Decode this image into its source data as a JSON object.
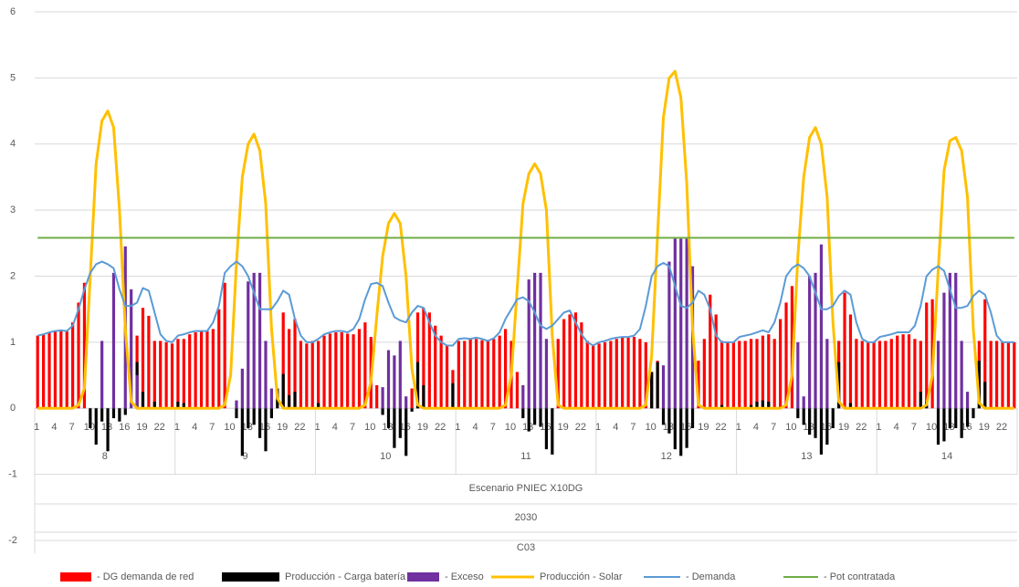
{
  "chart_data": {
    "type": "combo",
    "categories": [
      1,
      null,
      null,
      4,
      null,
      null,
      7,
      null,
      null,
      10,
      null,
      null,
      13,
      null,
      null,
      16,
      null,
      null,
      19,
      null,
      null,
      22,
      null,
      null,
      1,
      null,
      null,
      4,
      null,
      null,
      7,
      null,
      null,
      10,
      null,
      null,
      13,
      null,
      null,
      16,
      null,
      null,
      19,
      null,
      null,
      22,
      null,
      null,
      1,
      null,
      null,
      4,
      null,
      null,
      7,
      null,
      null,
      10,
      null,
      null,
      13,
      null,
      null,
      16,
      null,
      null,
      19,
      null,
      null,
      22,
      null,
      null,
      1,
      null,
      null,
      4,
      null,
      null,
      7,
      null,
      null,
      10,
      null,
      null,
      13,
      null,
      null,
      16,
      null,
      null,
      19,
      null,
      null,
      22,
      null,
      null,
      1,
      null,
      null,
      4,
      null,
      null,
      7,
      null,
      null,
      10,
      null,
      null,
      13,
      null,
      null,
      16,
      null,
      null,
      19,
      null,
      null,
      22,
      null,
      null,
      1,
      null,
      null,
      4,
      null,
      null,
      7,
      null,
      null,
      10,
      null,
      null,
      13,
      null,
      null,
      16,
      null,
      null,
      19,
      null,
      null,
      22,
      null,
      null,
      1,
      null,
      null,
      4,
      null,
      null,
      7,
      null,
      null,
      10,
      null,
      null,
      13,
      null,
      null,
      16,
      null,
      null,
      19,
      null,
      null,
      22,
      null,
      null
    ],
    "x_group_labels": [
      "8",
      "9",
      "10",
      "11",
      "12",
      "13",
      "14"
    ],
    "x_outer_labels": [
      "Escenario PNIEC X10DG",
      "2030",
      "C03"
    ],
    "ylim": [
      -2.2,
      6
    ],
    "yticks": [
      -2,
      -1,
      0,
      1,
      2,
      3,
      4,
      5,
      6
    ],
    "grid": true,
    "series": [
      {
        "name": "- DG demanda de red",
        "type": "bar",
        "color": "#ff0000",
        "values": [
          1.1,
          1.12,
          1.15,
          1.17,
          1.18,
          1.17,
          1.3,
          1.6,
          1.9,
          0,
          0,
          0,
          0,
          0,
          0,
          0,
          0,
          1.1,
          1.52,
          1.4,
          1.02,
          1.02,
          1.0,
          0.98,
          1.05,
          1.05,
          1.12,
          1.15,
          1.17,
          1.17,
          1.2,
          1.5,
          1.9,
          0,
          0,
          0,
          0,
          0,
          0,
          0,
          0,
          0,
          1.45,
          1.2,
          1.35,
          1.02,
          0.98,
          1.02,
          1.02,
          1.1,
          1.13,
          1.15,
          1.15,
          1.13,
          1.12,
          1.2,
          1.3,
          1.08,
          0.35,
          0,
          0,
          0,
          0,
          0,
          0.3,
          1.45,
          1.52,
          1.45,
          1.25,
          1.1,
          0.95,
          0.58,
          1.02,
          1.02,
          1.05,
          1.05,
          1.03,
          1.02,
          1.05,
          1.1,
          1.2,
          1.02,
          0.55,
          0,
          0,
          0,
          0,
          0,
          0,
          1.05,
          1.35,
          1.42,
          1.45,
          1.3,
          1.02,
          0.95,
          0.98,
          1.0,
          1.02,
          1.05,
          1.07,
          1.07,
          1.08,
          1.05,
          1.0,
          0.55,
          0.72,
          0,
          0,
          0,
          0,
          0,
          0,
          0.72,
          1.05,
          1.72,
          1.42,
          1.02,
          1.0,
          1.0,
          1.02,
          1.02,
          1.05,
          1.05,
          1.1,
          1.12,
          1.05,
          1.35,
          1.6,
          1.85,
          0,
          0,
          0,
          0,
          0,
          0,
          0,
          1.02,
          1.75,
          1.42,
          1.05,
          1.02,
          1.0,
          1.0,
          1.02,
          1.02,
          1.05,
          1.1,
          1.12,
          1.12,
          1.05,
          1.02,
          1.6,
          1.65,
          0,
          0,
          0,
          0,
          0,
          0,
          0,
          1.02,
          1.65,
          1.02,
          1.02,
          1.0,
          1.0,
          1.0
        ]
      },
      {
        "name": "Producción - Carga batería",
        "type": "bar",
        "color": "#000000",
        "values": [
          0,
          0,
          0,
          0,
          0,
          0,
          0,
          0,
          0,
          -0.3,
          -0.55,
          -0.2,
          -0.65,
          -0.15,
          -0.2,
          -0.1,
          0,
          0.7,
          0.25,
          0,
          0.1,
          0,
          0,
          0,
          0.1,
          0.08,
          0,
          0,
          0,
          0,
          0,
          0,
          0,
          0,
          -0.15,
          -0.72,
          -0.3,
          -0.25,
          -0.45,
          -0.65,
          -0.15,
          0.3,
          0.52,
          0.2,
          0.25,
          0,
          0,
          0,
          0.08,
          0,
          0,
          0,
          0,
          0,
          0,
          0,
          0,
          0,
          0,
          -0.1,
          -0.3,
          -0.6,
          -0.45,
          -0.72,
          -0.05,
          0.7,
          0.35,
          0,
          0,
          0,
          0,
          0.38,
          0,
          0,
          0,
          0,
          0,
          0,
          0,
          0,
          0,
          0,
          0,
          -0.15,
          -0.35,
          -0.25,
          -0.28,
          -0.62,
          -0.7,
          0,
          0,
          0,
          0,
          0,
          0,
          0,
          0,
          0,
          0,
          0,
          0,
          0,
          0,
          0,
          0,
          0.55,
          0.7,
          -0.25,
          -0.38,
          -0.62,
          -0.72,
          -0.6,
          -0.3,
          0,
          0,
          0,
          0,
          0.05,
          0,
          0,
          0,
          0,
          0.05,
          0.1,
          0.12,
          0.1,
          0,
          0,
          0,
          0,
          -0.15,
          -0.25,
          -0.4,
          -0.45,
          -0.7,
          -0.55,
          -0.3,
          0.7,
          0,
          0.08,
          0,
          0,
          0,
          0,
          0,
          0,
          0,
          0,
          0,
          0,
          0,
          0.25,
          0.1,
          0,
          -0.55,
          -0.5,
          -0.3,
          -0.3,
          -0.45,
          -0.28,
          -0.15,
          0.72,
          0.4,
          0,
          0,
          0,
          0,
          0
        ]
      },
      {
        "name": "- Exceso",
        "type": "bar",
        "color": "#7030a0",
        "values": [
          0,
          0,
          0,
          0,
          0,
          0,
          0,
          0,
          0,
          0,
          0,
          1.02,
          0,
          2.05,
          0,
          2.45,
          1.8,
          0.5,
          0,
          0,
          0,
          0,
          0,
          0,
          0,
          0,
          0,
          0,
          0,
          0,
          0,
          0,
          0,
          0,
          0.12,
          0.6,
          1.92,
          2.05,
          2.05,
          1.02,
          0.3,
          0,
          0,
          0,
          0,
          0,
          0,
          0,
          0,
          0,
          0,
          0,
          0,
          0,
          0,
          0,
          0,
          0,
          0,
          0.32,
          0.88,
          0.8,
          1.02,
          0.18,
          0,
          0,
          0,
          0,
          0,
          0,
          0,
          0,
          0,
          0,
          0,
          0,
          0,
          0,
          0,
          0,
          0,
          0,
          0,
          0.35,
          1.95,
          2.05,
          2.05,
          1.05,
          0,
          0,
          0,
          0,
          0,
          0,
          0,
          0,
          0,
          0,
          0,
          0,
          0,
          0,
          0,
          0,
          0,
          0,
          0,
          0.65,
          2.22,
          2.58,
          2.58,
          2.58,
          2.15,
          0,
          0,
          0,
          0,
          0,
          0,
          0,
          0,
          0,
          0,
          0,
          0,
          0,
          0,
          0,
          0,
          0,
          1.0,
          0.18,
          2.0,
          2.05,
          2.48,
          1.05,
          0,
          0,
          0,
          0,
          0,
          0,
          0,
          0,
          0,
          0,
          0,
          0,
          0,
          0,
          0,
          0,
          0,
          0,
          1.02,
          1.75,
          2.05,
          2.05,
          1.02,
          0.25,
          0,
          0,
          0,
          0,
          0,
          0,
          0,
          0
        ]
      },
      {
        "name": "Producción - Solar",
        "type": "line",
        "color": "#ffc000",
        "values": [
          0,
          0,
          0,
          0,
          0,
          0,
          0,
          0.05,
          0.3,
          2.0,
          3.7,
          4.35,
          4.5,
          4.25,
          3.0,
          1.2,
          0.1,
          0,
          0,
          0,
          0,
          0,
          0,
          0,
          0,
          0,
          0,
          0,
          0,
          0,
          0,
          0,
          0.05,
          0.5,
          2.2,
          3.5,
          4.0,
          4.15,
          3.9,
          3.1,
          1.2,
          0.15,
          0,
          0,
          0,
          0,
          0,
          0,
          0,
          0,
          0,
          0,
          0,
          0,
          0,
          0,
          0.05,
          0.4,
          1.4,
          2.3,
          2.8,
          2.95,
          2.8,
          2.0,
          0.6,
          0.05,
          0,
          0,
          0,
          0,
          0,
          0,
          0,
          0,
          0,
          0,
          0,
          0,
          0,
          0,
          0.05,
          0.5,
          1.8,
          3.1,
          3.55,
          3.7,
          3.55,
          3.0,
          1.1,
          0.05,
          0,
          0,
          0,
          0,
          0,
          0,
          0,
          0,
          0,
          0,
          0,
          0,
          0,
          0,
          0.05,
          0.8,
          2.6,
          4.4,
          5.0,
          5.1,
          4.7,
          3.4,
          1.2,
          0.05,
          0,
          0,
          0,
          0,
          0,
          0,
          0,
          0,
          0,
          0,
          0,
          0,
          0,
          0,
          0.05,
          0.5,
          2.3,
          3.5,
          4.1,
          4.25,
          4.0,
          3.2,
          1.3,
          0.1,
          0,
          0,
          0,
          0,
          0,
          0,
          0,
          0,
          0,
          0,
          0,
          0,
          0,
          0,
          0.05,
          0.5,
          2.1,
          3.6,
          4.05,
          4.1,
          3.9,
          3.2,
          1.2,
          0.08,
          0,
          0,
          0,
          0,
          0,
          0
        ]
      },
      {
        "name": "- Demanda",
        "type": "line",
        "color": "#5b9bd5",
        "values": [
          1.1,
          1.12,
          1.15,
          1.17,
          1.18,
          1.17,
          1.25,
          1.5,
          1.8,
          2.05,
          2.18,
          2.22,
          2.18,
          2.12,
          1.8,
          1.55,
          1.55,
          1.6,
          1.82,
          1.78,
          1.45,
          1.12,
          1.02,
          1.0,
          1.1,
          1.12,
          1.15,
          1.17,
          1.17,
          1.17,
          1.3,
          1.55,
          2.05,
          2.15,
          2.22,
          2.15,
          2.0,
          1.75,
          1.5,
          1.5,
          1.5,
          1.62,
          1.78,
          1.72,
          1.35,
          1.1,
          1.0,
          1.0,
          1.05,
          1.12,
          1.15,
          1.17,
          1.17,
          1.15,
          1.2,
          1.35,
          1.65,
          1.88,
          1.9,
          1.85,
          1.6,
          1.38,
          1.33,
          1.3,
          1.45,
          1.55,
          1.52,
          1.3,
          1.1,
          1.0,
          0.95,
          0.95,
          1.05,
          1.06,
          1.05,
          1.07,
          1.05,
          1.02,
          1.06,
          1.15,
          1.35,
          1.5,
          1.65,
          1.68,
          1.62,
          1.45,
          1.25,
          1.2,
          1.25,
          1.35,
          1.45,
          1.48,
          1.3,
          1.12,
          1.0,
          0.95,
          1.0,
          1.02,
          1.05,
          1.07,
          1.08,
          1.08,
          1.1,
          1.2,
          1.55,
          2.0,
          2.15,
          2.2,
          2.15,
          1.85,
          1.55,
          1.52,
          1.6,
          1.78,
          1.72,
          1.5,
          1.1,
          1.0,
          1.0,
          1.0,
          1.08,
          1.1,
          1.12,
          1.15,
          1.18,
          1.15,
          1.3,
          1.6,
          2.0,
          2.12,
          2.18,
          2.12,
          2.0,
          1.75,
          1.5,
          1.5,
          1.55,
          1.7,
          1.78,
          1.72,
          1.3,
          1.05,
          1.0,
          1.0,
          1.08,
          1.1,
          1.12,
          1.15,
          1.15,
          1.15,
          1.25,
          1.55,
          2.0,
          2.1,
          2.15,
          2.08,
          1.8,
          1.52,
          1.52,
          1.55,
          1.7,
          1.78,
          1.72,
          1.45,
          1.1,
          1.0,
          1.0,
          1.0
        ]
      },
      {
        "name": "- Pot contratada",
        "type": "line",
        "color": "#70ad47",
        "values": [
          2.58,
          2.58,
          2.58,
          2.58,
          2.58,
          2.58,
          2.58,
          2.58,
          2.58,
          2.58,
          2.58,
          2.58,
          2.58,
          2.58,
          2.58,
          2.58,
          2.58,
          2.58,
          2.58,
          2.58,
          2.58,
          2.58,
          2.58,
          2.58,
          2.58,
          2.58,
          2.58,
          2.58,
          2.58,
          2.58,
          2.58,
          2.58,
          2.58,
          2.58,
          2.58,
          2.58,
          2.58,
          2.58,
          2.58,
          2.58,
          2.58,
          2.58,
          2.58,
          2.58,
          2.58,
          2.58,
          2.58,
          2.58,
          2.58,
          2.58,
          2.58,
          2.58,
          2.58,
          2.58,
          2.58,
          2.58,
          2.58,
          2.58,
          2.58,
          2.58,
          2.58,
          2.58,
          2.58,
          2.58,
          2.58,
          2.58,
          2.58,
          2.58,
          2.58,
          2.58,
          2.58,
          2.58,
          2.58,
          2.58,
          2.58,
          2.58,
          2.58,
          2.58,
          2.58,
          2.58,
          2.58,
          2.58,
          2.58,
          2.58,
          2.58,
          2.58,
          2.58,
          2.58,
          2.58,
          2.58,
          2.58,
          2.58,
          2.58,
          2.58,
          2.58,
          2.58,
          2.58,
          2.58,
          2.58,
          2.58,
          2.58,
          2.58,
          2.58,
          2.58,
          2.58,
          2.58,
          2.58,
          2.58,
          2.58,
          2.58,
          2.58,
          2.58,
          2.58,
          2.58,
          2.58,
          2.58,
          2.58,
          2.58,
          2.58,
          2.58,
          2.58,
          2.58,
          2.58,
          2.58,
          2.58,
          2.58,
          2.58,
          2.58,
          2.58,
          2.58,
          2.58,
          2.58,
          2.58,
          2.58,
          2.58,
          2.58,
          2.58,
          2.58,
          2.58,
          2.58,
          2.58,
          2.58,
          2.58,
          2.58,
          2.58,
          2.58,
          2.58,
          2.58,
          2.58,
          2.58,
          2.58,
          2.58,
          2.58,
          2.58,
          2.58,
          2.58,
          2.58,
          2.58,
          2.58,
          2.58,
          2.58,
          2.58,
          2.58,
          2.58,
          2.58,
          2.58,
          2.58,
          2.58
        ]
      }
    ]
  }
}
